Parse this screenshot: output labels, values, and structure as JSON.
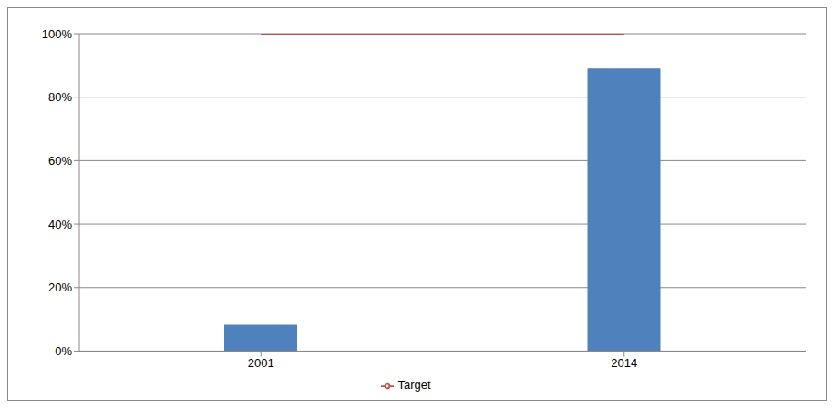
{
  "chart_data": {
    "type": "bar",
    "categories": [
      "2001",
      "2014"
    ],
    "series": [
      {
        "type": "bar",
        "color": "#4f81bd",
        "values": [
          8.3,
          89
        ]
      },
      {
        "name": "Target",
        "type": "line",
        "color": "#c0504d",
        "values": [
          100,
          100
        ]
      }
    ],
    "ylim": [
      0,
      100
    ],
    "yticks": [
      {
        "value": 0,
        "label": "0%"
      },
      {
        "value": 20,
        "label": "20%"
      },
      {
        "value": 40,
        "label": "40%"
      },
      {
        "value": 60,
        "label": "60%"
      },
      {
        "value": 80,
        "label": "80%"
      },
      {
        "value": 100,
        "label": "100%"
      }
    ],
    "grid": true,
    "legend": "bottom"
  }
}
